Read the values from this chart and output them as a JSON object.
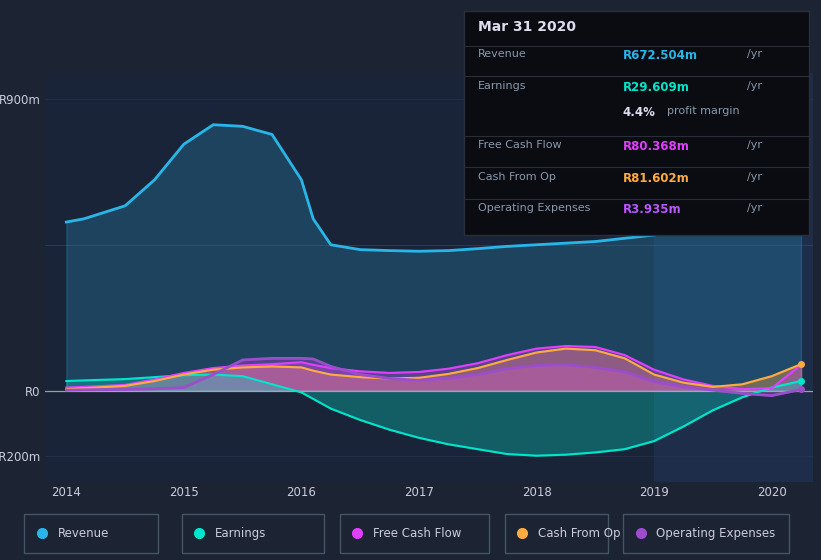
{
  "background_color": "#1c2333",
  "chart_bg_color": "#1a2438",
  "highlight_color": "#243050",
  "revenue_color": "#29b5e8",
  "earnings_color": "#00e5cc",
  "free_cash_flow_color": "#e040fb",
  "cash_from_op_color": "#ffab40",
  "operating_expenses_color": "#9c4dcc",
  "ylim_min": -280,
  "ylim_max": 980,
  "info_box": {
    "date": "Mar 31 2020",
    "revenue_label": "Revenue",
    "revenue_value": "R672.504m",
    "revenue_unit": "/yr",
    "earnings_label": "Earnings",
    "earnings_value": "R29.609m",
    "earnings_unit": "/yr",
    "margin_value": "4.4%",
    "margin_text": "profit margin",
    "fcf_label": "Free Cash Flow",
    "fcf_value": "R80.368m",
    "fcf_unit": "/yr",
    "cfo_label": "Cash From Op",
    "cfo_value": "R81.602m",
    "cfo_unit": "/yr",
    "opex_label": "Operating Expenses",
    "opex_value": "R3.935m",
    "opex_unit": "/yr"
  },
  "legend": [
    {
      "label": "Revenue",
      "color": "#29b5e8"
    },
    {
      "label": "Earnings",
      "color": "#00e5cc"
    },
    {
      "label": "Free Cash Flow",
      "color": "#e040fb"
    },
    {
      "label": "Cash From Op",
      "color": "#ffab40"
    },
    {
      "label": "Operating Expenses",
      "color": "#9c4dcc"
    }
  ]
}
